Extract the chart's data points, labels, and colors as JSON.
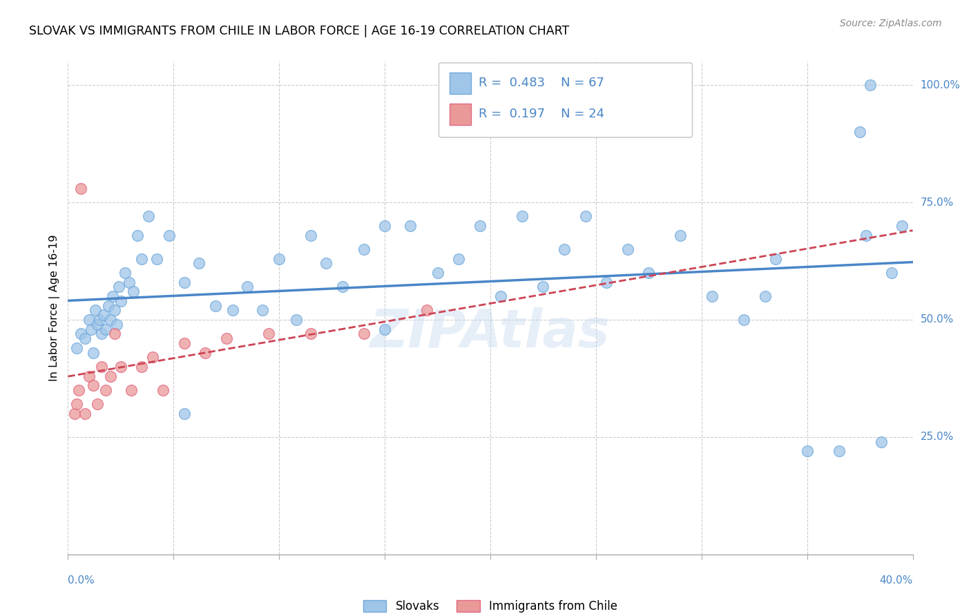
{
  "title": "SLOVAK VS IMMIGRANTS FROM CHILE IN LABOR FORCE | AGE 16-19 CORRELATION CHART",
  "source": "Source: ZipAtlas.com",
  "ylabel": "In Labor Force | Age 16-19",
  "legend_label1": "Slovaks",
  "legend_label2": "Immigrants from Chile",
  "r1": "0.483",
  "n1": "67",
  "r2": "0.197",
  "n2": "24",
  "xlim": [
    0.0,
    40.0
  ],
  "ylim": [
    0.0,
    105.0
  ],
  "ytick_vals": [
    25.0,
    50.0,
    75.0,
    100.0
  ],
  "xtick_vals": [
    0.0,
    5.0,
    10.0,
    15.0,
    20.0,
    25.0,
    30.0,
    35.0,
    40.0
  ],
  "color_blue_fill": "#9fc5e8",
  "color_pink_fill": "#ea9999",
  "color_blue_edge": "#6fa8dc",
  "color_pink_edge": "#e06880",
  "color_blue_line": "#4a86c8",
  "color_pink_line": "#cc4455",
  "color_text_blue": "#4a86c8",
  "color_grid": "#cccccc",
  "color_bg": "#ffffff",
  "slovak_x": [
    0.4,
    0.6,
    0.8,
    1.0,
    1.1,
    1.2,
    1.3,
    1.4,
    1.5,
    1.6,
    1.7,
    1.8,
    1.9,
    2.0,
    2.1,
    2.2,
    2.3,
    2.4,
    2.5,
    2.7,
    2.9,
    3.1,
    3.3,
    3.5,
    3.8,
    4.2,
    4.8,
    5.5,
    6.2,
    7.0,
    7.8,
    8.5,
    9.2,
    10.0,
    10.8,
    11.5,
    12.2,
    13.0,
    14.0,
    15.0,
    16.2,
    17.5,
    18.5,
    19.5,
    20.5,
    21.5,
    22.5,
    23.5,
    24.5,
    25.5,
    26.5,
    27.5,
    29.0,
    30.5,
    32.0,
    33.5,
    35.0,
    36.5,
    37.8,
    38.5,
    39.0,
    39.5,
    33.0,
    15.0,
    5.5,
    38.0,
    37.5
  ],
  "slovak_y": [
    44,
    47,
    46,
    50,
    48,
    43,
    52,
    49,
    50,
    47,
    51,
    48,
    53,
    50,
    55,
    52,
    49,
    57,
    54,
    60,
    58,
    56,
    68,
    63,
    72,
    63,
    68,
    58,
    62,
    53,
    52,
    57,
    52,
    63,
    50,
    68,
    62,
    57,
    65,
    48,
    70,
    60,
    63,
    70,
    55,
    72,
    57,
    65,
    72,
    58,
    65,
    60,
    68,
    55,
    50,
    63,
    22,
    22,
    68,
    24,
    60,
    70,
    55,
    70,
    30,
    100,
    90
  ],
  "chile_x": [
    0.3,
    0.4,
    0.5,
    0.6,
    0.8,
    1.0,
    1.2,
    1.4,
    1.6,
    1.8,
    2.0,
    2.2,
    2.5,
    3.0,
    3.5,
    4.0,
    4.5,
    5.5,
    6.5,
    7.5,
    9.5,
    11.5,
    14.0,
    17.0
  ],
  "chile_y": [
    30,
    32,
    35,
    78,
    30,
    38,
    36,
    32,
    40,
    35,
    38,
    47,
    40,
    35,
    40,
    42,
    35,
    45,
    43,
    46,
    47,
    47,
    47,
    52
  ]
}
